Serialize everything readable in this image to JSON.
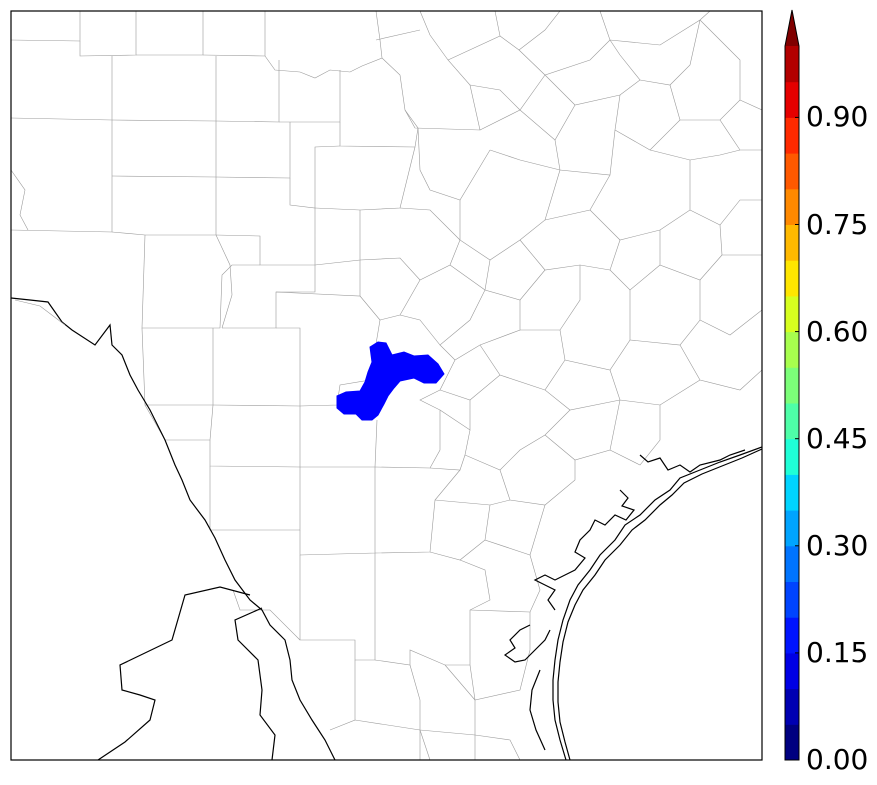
{
  "colorbar": {
    "ticks": [
      {
        "value": 0.0,
        "label": "0.00"
      },
      {
        "value": 0.15,
        "label": "0.15"
      },
      {
        "value": 0.3,
        "label": "0.30"
      },
      {
        "value": 0.45,
        "label": "0.45"
      },
      {
        "value": 0.6,
        "label": "0.60"
      },
      {
        "value": 0.75,
        "label": "0.75"
      },
      {
        "value": 0.9,
        "label": "0.90"
      }
    ],
    "min": 0.0,
    "max": 1.0,
    "levels": 20,
    "extend": "max",
    "colors": [
      "#000080",
      "#0000b2",
      "#0000e5",
      "#0014ff",
      "#0044ff",
      "#0074ff",
      "#00a4ff",
      "#00d4ff",
      "#1fffd7",
      "#4effa8",
      "#7cff79",
      "#a8ff4e",
      "#d7ff1f",
      "#ffe600",
      "#ffb900",
      "#ff8900",
      "#ff5900",
      "#ff2a00",
      "#e50000",
      "#b20000"
    ],
    "over_color": "#800000"
  },
  "map": {
    "region": "South-central Texas with Gulf coast",
    "highlight": {
      "value_range": [
        0.1,
        0.15
      ],
      "color": "#0000ff"
    },
    "county_line_color": "#9a9a9a",
    "coastline_color": "#000000",
    "background": "#ffffff"
  }
}
